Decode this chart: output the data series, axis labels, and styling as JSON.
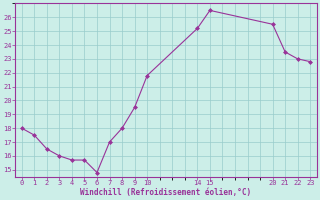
{
  "x": [
    0,
    1,
    2,
    3,
    4,
    5,
    6,
    7,
    8,
    9,
    10,
    14,
    15,
    20,
    21,
    22,
    23
  ],
  "y": [
    18.0,
    17.5,
    16.5,
    16.0,
    15.7,
    15.7,
    14.8,
    17.0,
    18.0,
    19.5,
    21.8,
    25.2,
    26.5,
    25.5,
    23.5,
    23.0,
    22.8
  ],
  "line_color": "#993399",
  "marker_color": "#993399",
  "bg_color": "#cceee8",
  "grid_color": "#99cccc",
  "xlabel": "Windchill (Refroidissement éolien,°C)",
  "xlabel_color": "#993399",
  "tick_color": "#993399",
  "spine_color": "#993399",
  "xlim": [
    -0.5,
    23.5
  ],
  "ylim": [
    14.5,
    27.0
  ],
  "xticks": [
    0,
    1,
    2,
    3,
    4,
    5,
    6,
    7,
    8,
    9,
    10,
    14,
    15,
    20,
    21,
    22,
    23
  ],
  "yticks": [
    15,
    16,
    17,
    18,
    19,
    20,
    21,
    22,
    23,
    24,
    25,
    26
  ],
  "figsize": [
    3.2,
    2.0
  ],
  "dpi": 100
}
